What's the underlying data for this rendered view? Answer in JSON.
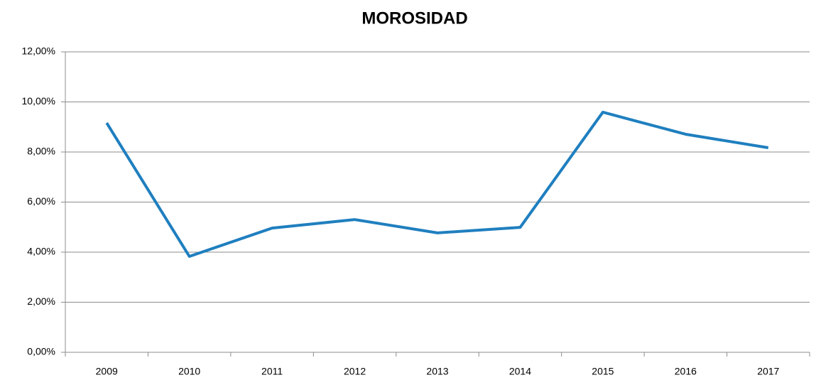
{
  "chart_data": {
    "type": "line",
    "title": "MOROSIDAD",
    "categories": [
      "2009",
      "2010",
      "2011",
      "2012",
      "2013",
      "2014",
      "2015",
      "2016",
      "2017"
    ],
    "series": [
      {
        "color": "#1f7fbf",
        "values": [
          9.16,
          3.83,
          4.96,
          5.3,
          4.77,
          4.99,
          9.59,
          8.71,
          8.17
        ]
      }
    ],
    "ylim": [
      0,
      12
    ],
    "yticks": [
      {
        "value": 0,
        "label": "0,00%"
      },
      {
        "value": 2,
        "label": "2,00%"
      },
      {
        "value": 4,
        "label": "4,00%"
      },
      {
        "value": 6,
        "label": "6,00%"
      },
      {
        "value": 8,
        "label": "8,00%"
      },
      {
        "value": 10,
        "label": "10,00%"
      },
      {
        "value": 12,
        "label": "12,00%"
      }
    ],
    "grid": true
  }
}
